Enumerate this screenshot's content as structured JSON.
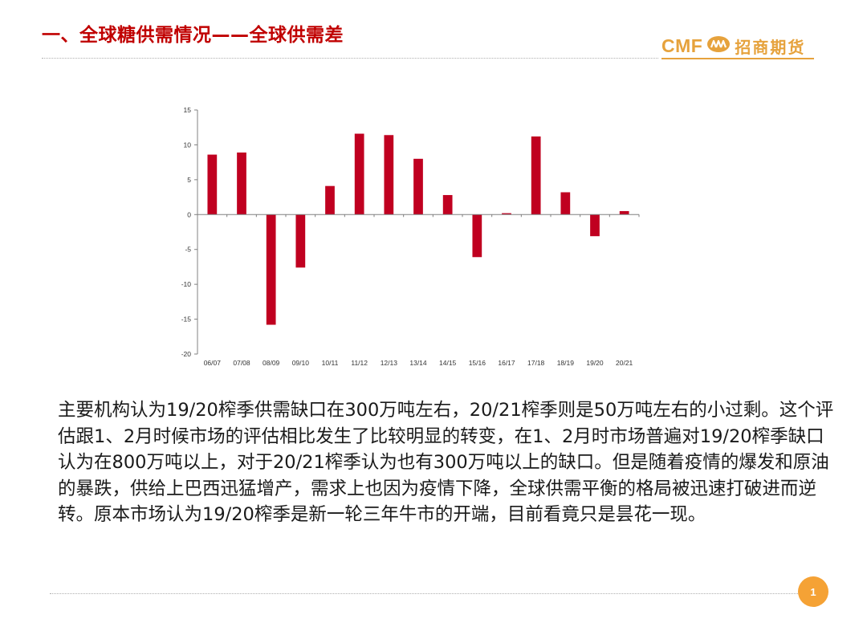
{
  "header": {
    "title": "一、全球糖供需情况——全球供需差",
    "logo_latin": "CMF",
    "logo_cn": "招商期货"
  },
  "colors": {
    "title_red": "#c00000",
    "bar_red": "#c00020",
    "logo_orange": "#e6a23c",
    "page_badge": "#f5a235"
  },
  "chart_data": {
    "type": "bar",
    "title": "",
    "xlabel": "",
    "ylabel": "",
    "categories": [
      "06/07",
      "07/08",
      "08/09",
      "09/10",
      "10/11",
      "11/12",
      "12/13",
      "13/14",
      "14/15",
      "15/16",
      "16/17",
      "17/18",
      "18/19",
      "19/20",
      "20/21"
    ],
    "values": [
      8.6,
      8.9,
      -15.8,
      -7.6,
      4.1,
      11.6,
      11.4,
      8.0,
      2.8,
      -6.1,
      0.2,
      11.2,
      3.2,
      -3.1,
      0.5
    ],
    "yticks": [
      15,
      10,
      5,
      0,
      -5,
      -10,
      -15,
      -20
    ],
    "ylim": [
      -20,
      15
    ],
    "grid": false,
    "legend": "none"
  },
  "body": {
    "paragraph": "主要机构认为19/20榨季供需缺口在300万吨左右，20/21榨季则是50万吨左右的小过剩。这个评估跟1、2月时候市场的评估相比发生了比较明显的转变，在1、2月时市场普遍对19/20榨季缺口认为在800万吨以上，对于20/21榨季认为也有300万吨以上的缺口。但是随着疫情的爆发和原油的暴跌，供给上巴西迅猛增产，需求上也因为疫情下降，全球供需平衡的格局被迅速打破进而逆转。原本市场认为19/20榨季是新一轮三年牛市的开端，目前看竟只是昙花一现。"
  },
  "footer": {
    "page_number": "1"
  }
}
